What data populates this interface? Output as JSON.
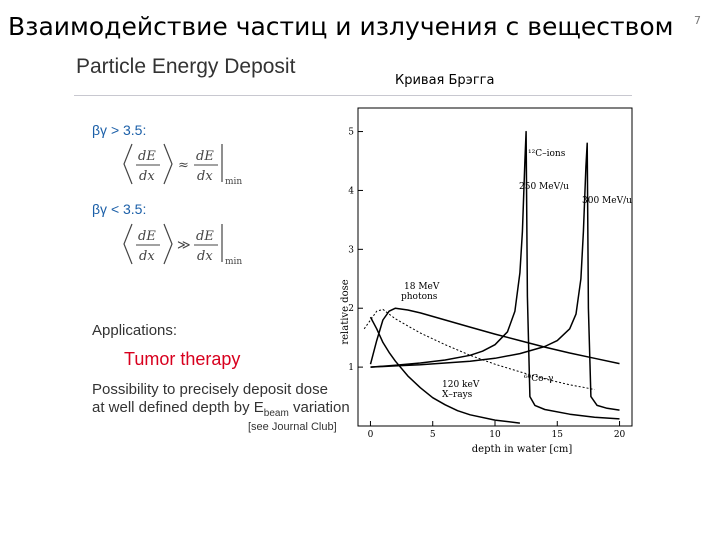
{
  "slide": {
    "title": "Взаимодействие частиц и излучения с веществом",
    "page_number": "7",
    "subtitle": "Particle Energy Deposit",
    "chart_caption": "Кривая Брэгга"
  },
  "left_panel": {
    "cond1": "βγ > 3.5:",
    "cond2": "βγ < 3.5:",
    "formula_lhs": "dE",
    "formula_den": "dx",
    "formula_min": "min",
    "approx_symbol": "≈",
    "much_greater_symbol": "≫",
    "applications_label": "Applications:",
    "tumor_therapy": "Tumor therapy",
    "possibility_line1": "Possibility to precisely deposit dose",
    "possibility_line2a": "at well defined depth by E",
    "possibility_line2_sub": "beam",
    "possibility_line2b": " variation",
    "journal_club": "[see Journal Club]"
  },
  "colors": {
    "accent_blue": "#1b5fa8",
    "tumor_red": "#d8001e",
    "divider": "#c8c8d0"
  },
  "chart_data": {
    "type": "line",
    "xlabel": "depth in water [cm]",
    "ylabel": "relative dose",
    "xlim": [
      -1,
      21
    ],
    "ylim": [
      0,
      5.4
    ],
    "xticks": [
      0,
      5,
      10,
      15,
      20
    ],
    "yticks": [
      1,
      2,
      3,
      4,
      5
    ],
    "xtick_labels": [
      "0",
      "5",
      "10",
      "15",
      "20"
    ],
    "ytick_labels": [
      "1",
      "2",
      "3",
      "4",
      "5"
    ],
    "annotations": {
      "c12_ions": "¹²C–ions",
      "c12_250": "250 MeV/u",
      "c12_300": "300 MeV/u",
      "photons_18_line1": "18 MeV",
      "photons_18_line2": "photons",
      "co60": "⁶⁰Co–γ",
      "xray_line1": "120 keV",
      "xray_line2": "X–rays"
    },
    "series": [
      {
        "id": "c12_250",
        "style": "solid",
        "x": [
          0,
          2,
          4,
          6,
          8,
          9,
          10,
          11,
          11.6,
          12,
          12.2,
          12.4,
          12.5,
          12.6,
          12.8,
          13.2,
          14,
          16,
          18,
          20
        ],
        "y": [
          1.0,
          1.03,
          1.07,
          1.12,
          1.2,
          1.27,
          1.38,
          1.6,
          1.95,
          2.6,
          3.3,
          4.5,
          5.0,
          2.2,
          0.5,
          0.35,
          0.28,
          0.2,
          0.15,
          0.12
        ]
      },
      {
        "id": "c12_300",
        "style": "solid",
        "x": [
          0,
          2,
          4,
          6,
          8,
          10,
          12,
          14,
          15,
          16,
          16.5,
          16.9,
          17.1,
          17.3,
          17.4,
          17.5,
          17.7,
          18.2,
          19,
          20
        ],
        "y": [
          1.0,
          1.02,
          1.04,
          1.07,
          1.1,
          1.15,
          1.23,
          1.35,
          1.45,
          1.65,
          1.9,
          2.5,
          3.3,
          4.4,
          4.8,
          2.0,
          0.5,
          0.35,
          0.3,
          0.27
        ]
      },
      {
        "id": "photons_18mev",
        "style": "solid",
        "x": [
          0,
          0.5,
          1,
          1.5,
          2,
          3,
          4,
          6,
          8,
          10,
          12,
          14,
          16,
          18,
          20
        ],
        "y": [
          1.05,
          1.45,
          1.8,
          1.95,
          2.0,
          1.97,
          1.92,
          1.8,
          1.68,
          1.56,
          1.45,
          1.34,
          1.24,
          1.15,
          1.06
        ]
      },
      {
        "id": "co60",
        "style": "dashed",
        "x": [
          -0.5,
          0,
          0.5,
          1,
          1.5,
          2,
          3,
          4,
          6,
          8,
          10,
          12,
          14,
          16,
          17,
          18
        ],
        "y": [
          1.65,
          1.8,
          1.95,
          1.98,
          1.9,
          1.82,
          1.7,
          1.58,
          1.38,
          1.2,
          1.05,
          0.92,
          0.8,
          0.7,
          0.66,
          0.62
        ]
      },
      {
        "id": "xray_120kev",
        "style": "solid",
        "x": [
          0,
          0.5,
          1,
          1.5,
          2,
          3,
          4,
          5,
          6,
          7,
          8,
          10,
          12
        ],
        "y": [
          1.85,
          1.65,
          1.42,
          1.25,
          1.1,
          0.85,
          0.65,
          0.48,
          0.36,
          0.26,
          0.19,
          0.1,
          0.05
        ]
      }
    ]
  }
}
